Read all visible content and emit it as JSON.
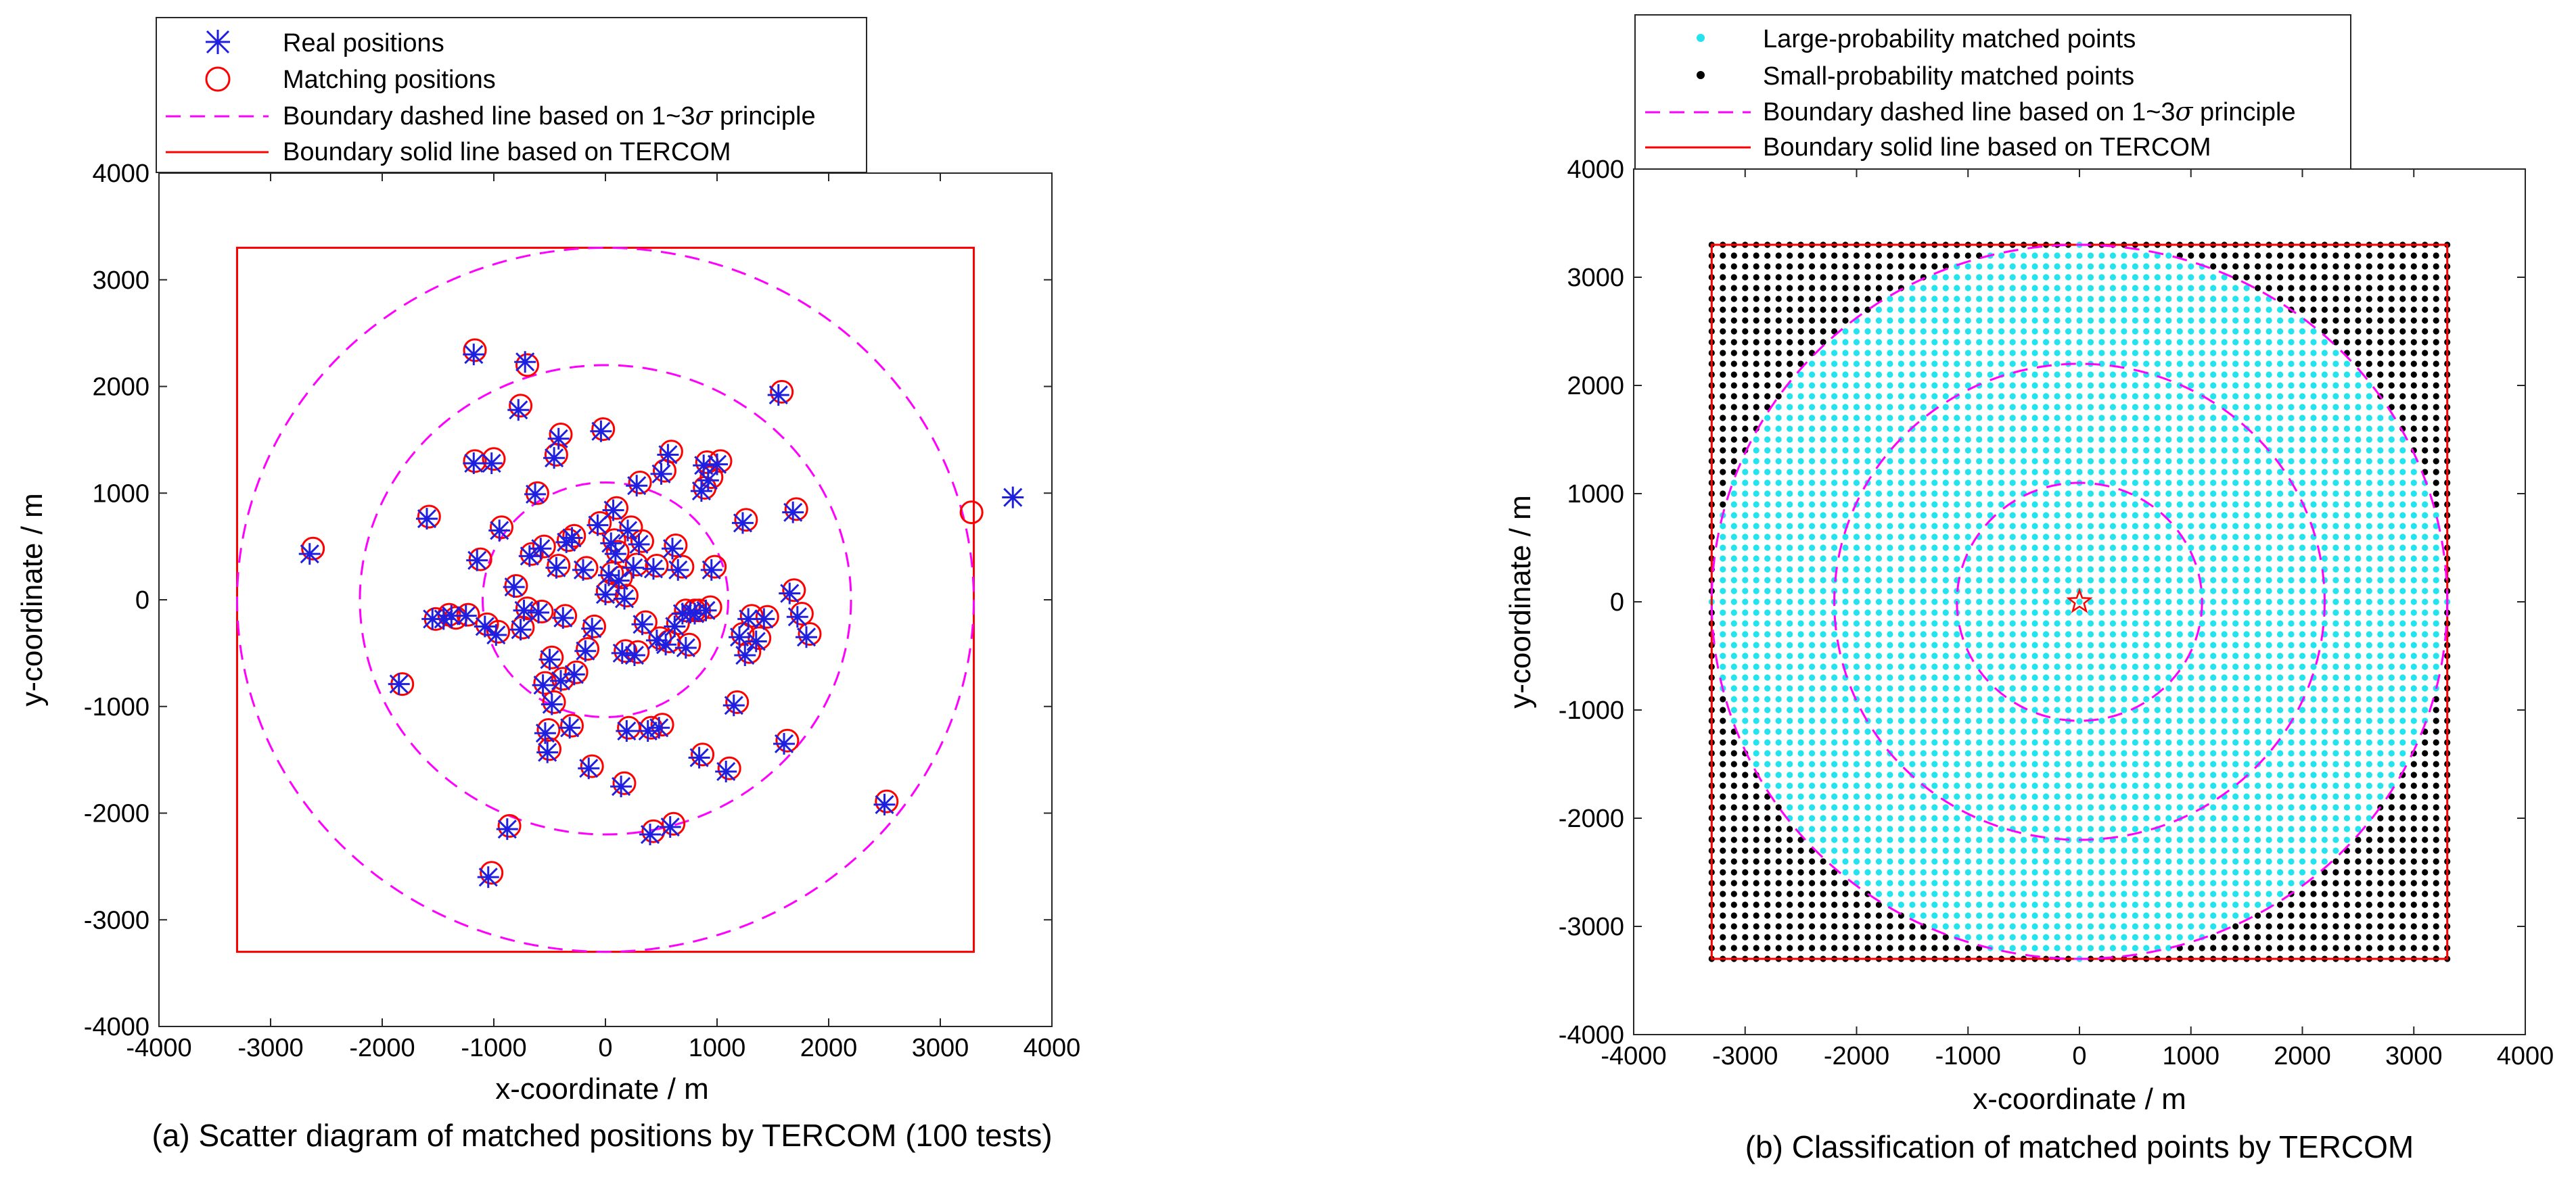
{
  "figure": {
    "caption_a": "(a) Scatter diagram of matched positions by TERCOM (100 tests)",
    "caption_b": "(b) Classification of matched points by TERCOM",
    "sigma_symbol": "σ"
  },
  "colors": {
    "real": "#1f1fe0",
    "match": "#ff0000",
    "dashed": "#ff00ff",
    "solid": "#ff0000",
    "large": "#22e3ee",
    "small": "#000000",
    "star": "#ff0000"
  },
  "chart_data": [
    {
      "id": "a",
      "type": "scatter",
      "title": "",
      "xlabel": "x-coordinate / m",
      "ylabel": "y-coordinate / m",
      "xlim": [
        -4000,
        4000
      ],
      "ylim": [
        -4000,
        4000
      ],
      "xticks": [
        -4000,
        -3000,
        -2000,
        -1000,
        0,
        1000,
        2000,
        3000,
        4000
      ],
      "yticks": [
        -4000,
        -3000,
        -2000,
        -1000,
        0,
        1000,
        2000,
        3000,
        4000
      ],
      "legend_position": "top-left",
      "legend": [
        {
          "key": "real",
          "label": "Real positions"
        },
        {
          "key": "match",
          "label": "Matching positions"
        },
        {
          "key": "dashed",
          "label_before": "Boundary dashed line based on 1~3",
          "label_after": " principle"
        },
        {
          "key": "solid",
          "label": "Boundary solid line based on TERCOM"
        }
      ],
      "sigma_radii": [
        1100,
        2200,
        3300
      ],
      "tercom_box": [
        -3300,
        3300
      ],
      "real_positions": [
        [
          -2650,
          430
        ],
        [
          -1850,
          -790
        ],
        [
          -1600,
          760
        ],
        [
          -1550,
          -180
        ],
        [
          -1450,
          -180
        ],
        [
          -1380,
          -150
        ],
        [
          -1250,
          -150
        ],
        [
          -1180,
          2300
        ],
        [
          -1180,
          1280
        ],
        [
          -1150,
          370
        ],
        [
          -1080,
          -250
        ],
        [
          -1050,
          -2600
        ],
        [
          -1020,
          1280
        ],
        [
          -980,
          -330
        ],
        [
          -950,
          650
        ],
        [
          -880,
          -2150
        ],
        [
          -820,
          120
        ],
        [
          -780,
          1780
        ],
        [
          -760,
          -280
        ],
        [
          -730,
          -100
        ],
        [
          -720,
          2230
        ],
        [
          -680,
          410
        ],
        [
          -630,
          990
        ],
        [
          -600,
          -120
        ],
        [
          -580,
          480
        ],
        [
          -560,
          -800
        ],
        [
          -540,
          -1250
        ],
        [
          -520,
          -1430
        ],
        [
          -500,
          -560
        ],
        [
          -480,
          -980
        ],
        [
          -460,
          1330
        ],
        [
          -440,
          300
        ],
        [
          -420,
          1510
        ],
        [
          -400,
          -760
        ],
        [
          -380,
          -170
        ],
        [
          -350,
          540
        ],
        [
          -320,
          -1200
        ],
        [
          -300,
          580
        ],
        [
          -280,
          -700
        ],
        [
          -180,
          -480
        ],
        [
          -150,
          -1580
        ],
        [
          -120,
          -270
        ],
        [
          -70,
          700
        ],
        [
          -40,
          1580
        ],
        [
          0,
          50
        ],
        [
          30,
          230
        ],
        [
          50,
          530
        ],
        [
          70,
          840
        ],
        [
          90,
          430
        ],
        [
          120,
          180
        ],
        [
          140,
          -1750
        ],
        [
          150,
          -500
        ],
        [
          170,
          10
        ],
        [
          190,
          -1230
        ],
        [
          200,
          650
        ],
        [
          250,
          300
        ],
        [
          280,
          1070
        ],
        [
          300,
          520
        ],
        [
          330,
          -230
        ],
        [
          380,
          -1230
        ],
        [
          400,
          -2200
        ],
        [
          430,
          290
        ],
        [
          460,
          -380
        ],
        [
          500,
          1180
        ],
        [
          540,
          -420
        ],
        [
          560,
          1360
        ],
        [
          580,
          -2130
        ],
        [
          600,
          480
        ],
        [
          620,
          -250
        ],
        [
          650,
          280
        ],
        [
          690,
          -130
        ],
        [
          720,
          -450
        ],
        [
          760,
          -120
        ],
        [
          800,
          -130
        ],
        [
          840,
          -1480
        ],
        [
          860,
          1020
        ],
        [
          880,
          1260
        ],
        [
          900,
          -100
        ],
        [
          920,
          1120
        ],
        [
          950,
          280
        ],
        [
          1000,
          1270
        ],
        [
          1080,
          -1610
        ],
        [
          1150,
          -990
        ],
        [
          1200,
          -350
        ],
        [
          1230,
          720
        ],
        [
          1250,
          -520
        ],
        [
          1280,
          -180
        ],
        [
          1350,
          -390
        ],
        [
          1420,
          -180
        ],
        [
          1550,
          1920
        ],
        [
          1600,
          -1350
        ],
        [
          1650,
          60
        ],
        [
          1680,
          820
        ],
        [
          1720,
          -160
        ],
        [
          1800,
          -350
        ],
        [
          2500,
          -1920
        ],
        [
          3650,
          960
        ],
        [
          -200,
          280
        ],
        [
          260,
          -520
        ],
        [
          480,
          -1200
        ]
      ],
      "matching_positions": [
        [
          -2620,
          480
        ],
        [
          -1820,
          -790
        ],
        [
          -1580,
          780
        ],
        [
          -1520,
          -180
        ],
        [
          -1400,
          -140
        ],
        [
          -1340,
          -170
        ],
        [
          -1230,
          -140
        ],
        [
          -1170,
          2340
        ],
        [
          -1170,
          1300
        ],
        [
          -1120,
          380
        ],
        [
          -1060,
          -230
        ],
        [
          -1020,
          -2560
        ],
        [
          -1000,
          1320
        ],
        [
          -960,
          -300
        ],
        [
          -930,
          680
        ],
        [
          -860,
          -2120
        ],
        [
          -800,
          130
        ],
        [
          -760,
          1820
        ],
        [
          -740,
          -260
        ],
        [
          -700,
          -80
        ],
        [
          -700,
          2200
        ],
        [
          -660,
          430
        ],
        [
          -610,
          1000
        ],
        [
          -570,
          -110
        ],
        [
          -550,
          500
        ],
        [
          -540,
          -780
        ],
        [
          -510,
          -1220
        ],
        [
          -500,
          -1400
        ],
        [
          -480,
          -540
        ],
        [
          -460,
          -960
        ],
        [
          -440,
          1360
        ],
        [
          -420,
          320
        ],
        [
          -400,
          1550
        ],
        [
          -380,
          -740
        ],
        [
          -360,
          -150
        ],
        [
          -330,
          560
        ],
        [
          -300,
          -1180
        ],
        [
          -280,
          600
        ],
        [
          -260,
          -680
        ],
        [
          -160,
          -460
        ],
        [
          -120,
          -1560
        ],
        [
          -100,
          -250
        ],
        [
          -50,
          720
        ],
        [
          -20,
          1600
        ],
        [
          20,
          80
        ],
        [
          60,
          250
        ],
        [
          80,
          560
        ],
        [
          100,
          860
        ],
        [
          110,
          450
        ],
        [
          140,
          210
        ],
        [
          170,
          -1720
        ],
        [
          180,
          -480
        ],
        [
          190,
          40
        ],
        [
          210,
          -1200
        ],
        [
          230,
          680
        ],
        [
          280,
          330
        ],
        [
          310,
          1100
        ],
        [
          330,
          550
        ],
        [
          360,
          -210
        ],
        [
          410,
          -1200
        ],
        [
          430,
          -2170
        ],
        [
          460,
          320
        ],
        [
          490,
          -360
        ],
        [
          530,
          1210
        ],
        [
          570,
          -390
        ],
        [
          590,
          1390
        ],
        [
          610,
          -2100
        ],
        [
          630,
          510
        ],
        [
          650,
          -220
        ],
        [
          690,
          310
        ],
        [
          720,
          -100
        ],
        [
          750,
          -420
        ],
        [
          800,
          -100
        ],
        [
          840,
          -100
        ],
        [
          870,
          -1450
        ],
        [
          890,
          1050
        ],
        [
          910,
          1290
        ],
        [
          940,
          -70
        ],
        [
          950,
          1150
        ],
        [
          980,
          310
        ],
        [
          1030,
          1300
        ],
        [
          1110,
          -1580
        ],
        [
          1180,
          -960
        ],
        [
          1230,
          -320
        ],
        [
          1260,
          750
        ],
        [
          1290,
          -490
        ],
        [
          1310,
          -150
        ],
        [
          1380,
          -360
        ],
        [
          1450,
          -160
        ],
        [
          1580,
          1950
        ],
        [
          1630,
          -1320
        ],
        [
          1690,
          90
        ],
        [
          1710,
          850
        ],
        [
          1760,
          -130
        ],
        [
          1830,
          -320
        ],
        [
          2520,
          -1890
        ],
        [
          3280,
          820
        ],
        [
          -170,
          300
        ],
        [
          290,
          -490
        ],
        [
          510,
          -1170
        ]
      ]
    },
    {
      "id": "b",
      "type": "scatter",
      "title": "",
      "xlabel": "x-coordinate / m",
      "ylabel": "y-coordinate / m",
      "xlim": [
        -4000,
        4000
      ],
      "ylim": [
        -4000,
        4000
      ],
      "xticks": [
        -4000,
        -3000,
        -2000,
        -1000,
        0,
        1000,
        2000,
        3000,
        4000
      ],
      "yticks": [
        -4000,
        -3000,
        -2000,
        -1000,
        0,
        1000,
        2000,
        3000,
        4000
      ],
      "legend_position": "top-left",
      "legend": [
        {
          "key": "large",
          "label": "Large-probability matched points"
        },
        {
          "key": "small",
          "label": "Small-probability matched points"
        },
        {
          "key": "dashed",
          "label_before": "Boundary dashed line based on 1~3",
          "label_after": " principle"
        },
        {
          "key": "solid",
          "label": "Boundary solid line based on TERCOM"
        }
      ],
      "sigma_radii": [
        1100,
        2200,
        3300
      ],
      "tercom_box": [
        -3300,
        3300
      ],
      "grid": {
        "min": -3300,
        "max": 3300,
        "step": 100
      },
      "large_probability_rule": "distance from origin <= 3300",
      "small_probability_rule": "distance from origin > 3300",
      "center_point": [
        0,
        0
      ]
    }
  ]
}
